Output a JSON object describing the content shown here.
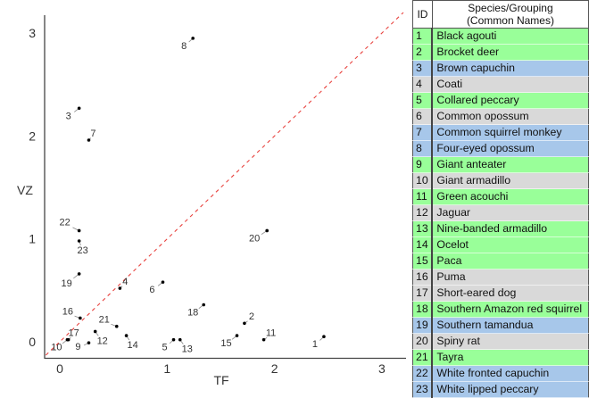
{
  "chart_data": {
    "type": "scatter",
    "title": "",
    "xlabel": "TF",
    "ylabel": "VZ",
    "xlim": [
      -0.15,
      3.1
    ],
    "ylim": [
      -0.15,
      3.15
    ],
    "xticks": [
      0,
      1,
      2,
      3
    ],
    "yticks": [
      0,
      1,
      2,
      3
    ],
    "grid": false,
    "reference_line": {
      "type": "y=x",
      "style": "dashed",
      "color": "#e8433f"
    },
    "points": [
      {
        "id": "1",
        "x": 2.46,
        "y": 0.05
      },
      {
        "id": "2",
        "x": 1.72,
        "y": 0.18
      },
      {
        "id": "3",
        "x": 0.18,
        "y": 2.27
      },
      {
        "id": "4",
        "x": 0.56,
        "y": 0.52
      },
      {
        "id": "5",
        "x": 1.06,
        "y": 0.02
      },
      {
        "id": "6",
        "x": 0.96,
        "y": 0.58
      },
      {
        "id": "7",
        "x": 0.27,
        "y": 1.96
      },
      {
        "id": "8",
        "x": 1.24,
        "y": 2.95
      },
      {
        "id": "9",
        "x": 0.27,
        "y": -0.01
      },
      {
        "id": "10",
        "x": 0.07,
        "y": 0.02
      },
      {
        "id": "11",
        "x": 1.9,
        "y": 0.02
      },
      {
        "id": "12",
        "x": 0.33,
        "y": 0.1
      },
      {
        "id": "13",
        "x": 1.12,
        "y": 0.02
      },
      {
        "id": "14",
        "x": 0.62,
        "y": 0.06
      },
      {
        "id": "15",
        "x": 1.65,
        "y": 0.06
      },
      {
        "id": "16",
        "x": 0.19,
        "y": 0.23
      },
      {
        "id": "17",
        "x": 0.08,
        "y": 0.02
      },
      {
        "id": "18",
        "x": 1.34,
        "y": 0.36
      },
      {
        "id": "19",
        "x": 0.18,
        "y": 0.66
      },
      {
        "id": "20",
        "x": 1.93,
        "y": 1.08
      },
      {
        "id": "21",
        "x": 0.53,
        "y": 0.15
      },
      {
        "id": "22",
        "x": 0.18,
        "y": 1.08
      },
      {
        "id": "23",
        "x": 0.18,
        "y": 0.98
      }
    ]
  },
  "legend": {
    "header_id": "ID",
    "header_name_line1": "Species/Grouping",
    "header_name_line2": "(Common Names)",
    "colors": {
      "green": "#99ff99",
      "blue": "#a7c7ea",
      "gray": "#d9d9d9"
    },
    "rows": [
      {
        "id": "1",
        "name": "Black agouti",
        "group": "green"
      },
      {
        "id": "2",
        "name": "Brocket deer",
        "group": "green"
      },
      {
        "id": "3",
        "name": "Brown capuchin",
        "group": "blue"
      },
      {
        "id": "4",
        "name": "Coati",
        "group": "gray"
      },
      {
        "id": "5",
        "name": "Collared peccary",
        "group": "green"
      },
      {
        "id": "6",
        "name": "Common opossum",
        "group": "gray"
      },
      {
        "id": "7",
        "name": "Common squirrel monkey",
        "group": "blue"
      },
      {
        "id": "8",
        "name": "Four-eyed opossum",
        "group": "blue"
      },
      {
        "id": "9",
        "name": "Giant anteater",
        "group": "green"
      },
      {
        "id": "10",
        "name": "Giant armadillo",
        "group": "gray"
      },
      {
        "id": "11",
        "name": "Green acouchi",
        "group": "green"
      },
      {
        "id": "12",
        "name": "Jaguar",
        "group": "gray"
      },
      {
        "id": "13",
        "name": "Nine-banded armadillo",
        "group": "green"
      },
      {
        "id": "14",
        "name": "Ocelot",
        "group": "green"
      },
      {
        "id": "15",
        "name": "Paca",
        "group": "green"
      },
      {
        "id": "16",
        "name": "Puma",
        "group": "gray"
      },
      {
        "id": "17",
        "name": "Short-eared dog",
        "group": "gray"
      },
      {
        "id": "18",
        "name": "Southern Amazon red squirrel",
        "group": "green"
      },
      {
        "id": "19",
        "name": "Southern tamandua",
        "group": "blue"
      },
      {
        "id": "20",
        "name": "Spiny rat",
        "group": "gray"
      },
      {
        "id": "21",
        "name": "Tayra",
        "group": "green"
      },
      {
        "id": "22",
        "name": "White fronted capuchin",
        "group": "blue"
      },
      {
        "id": "23",
        "name": "White lipped peccary",
        "group": "blue"
      }
    ]
  }
}
